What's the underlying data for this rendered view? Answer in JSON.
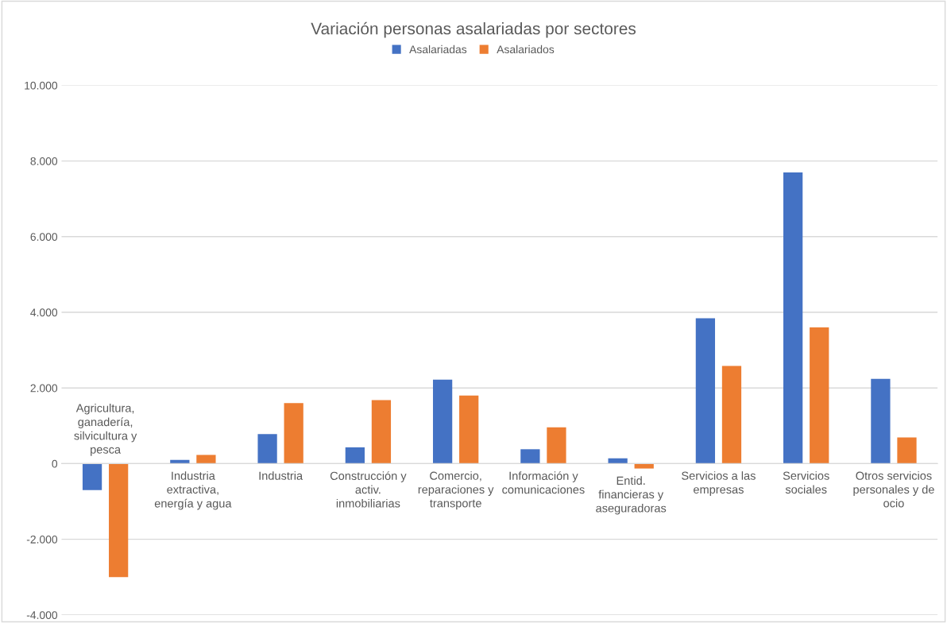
{
  "chart_data": {
    "type": "bar",
    "title": "Variación personas asalariadas por sectores",
    "categories": [
      "Agricultura, ganadería, silvicultura y pesca",
      "Industria extractiva, energía y agua",
      "Industria",
      "Construcción y activ. inmobiliarias",
      "Comercio, reparaciones y transporte",
      "Información y comunicaciones",
      "Entid. financieras y aseguradoras",
      "Servicios a las empresas",
      "Servicios sociales",
      "Otros servicios personales y de ocio"
    ],
    "series": [
      {
        "name": "Asalariadas",
        "color": "#4472c4",
        "values": [
          -700,
          100,
          780,
          430,
          2220,
          380,
          140,
          3840,
          7700,
          2240
        ]
      },
      {
        "name": "Asalariados",
        "color": "#ed7d31",
        "values": [
          -3000,
          230,
          1600,
          1680,
          1800,
          960,
          -130,
          2580,
          3600,
          690
        ]
      }
    ],
    "ylim": [
      -4000,
      10000
    ],
    "yticks": [
      {
        "value": -4000,
        "label": "-4.000"
      },
      {
        "value": -2000,
        "label": "-2.000"
      },
      {
        "value": 0,
        "label": "0"
      },
      {
        "value": 2000,
        "label": "2.000"
      },
      {
        "value": 4000,
        "label": "4.000"
      },
      {
        "value": 6000,
        "label": "6.000"
      },
      {
        "value": 8000,
        "label": "8.000"
      },
      {
        "value": 10000,
        "label": "10.000"
      }
    ],
    "grid": "y",
    "legend": "top"
  }
}
